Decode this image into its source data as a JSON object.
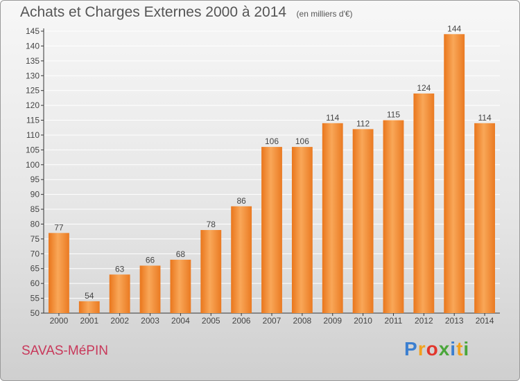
{
  "title": "Achats et Charges Externes 2000 à 2014",
  "unit_note": "(en milliers d'€)",
  "commune": "SAVAS-MéPIN",
  "brand": {
    "letters": [
      "P",
      "r",
      "o",
      "x",
      "i",
      "t",
      "i"
    ],
    "colors": [
      "#3b7fd0",
      "#f2a11d",
      "#e2362c",
      "#4aa63a",
      "#3b7fd0",
      "#f2a11d",
      "#4aa63a"
    ]
  },
  "colors": {
    "bar": "#f08a2a",
    "bar_light": "#f7a85a",
    "grid": "#ffffff",
    "text": "#444444"
  },
  "chart_data": {
    "type": "bar",
    "categories": [
      "2000",
      "2001",
      "2002",
      "2003",
      "2004",
      "2005",
      "2006",
      "2007",
      "2008",
      "2009",
      "2010",
      "2011",
      "2012",
      "2013",
      "2014"
    ],
    "values": [
      77,
      54,
      63,
      66,
      68,
      78,
      86,
      106,
      106,
      114,
      112,
      115,
      124,
      144,
      114
    ],
    "data_labels": [
      "77",
      "54",
      "63",
      "66",
      "68",
      "78",
      "86",
      "106",
      "106",
      "114",
      "112",
      "115",
      "124",
      "144",
      "114"
    ],
    "title": "Achats et Charges Externes 2000 à 2014",
    "xlabel": "",
    "ylabel": "",
    "ylim": [
      50,
      145
    ],
    "yticks": [
      50,
      55,
      60,
      65,
      70,
      75,
      80,
      85,
      90,
      95,
      100,
      105,
      110,
      115,
      120,
      125,
      130,
      135,
      140,
      145
    ],
    "grid": true,
    "legend": "none"
  }
}
